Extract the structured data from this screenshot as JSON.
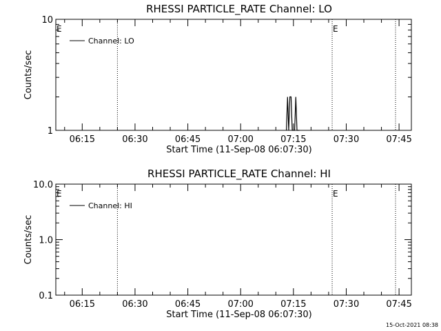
{
  "chart_data": [
    {
      "type": "line",
      "title": "RHESSI PARTICLE_RATE Channel: LO",
      "xlabel": "Start Time (11-Sep-08 06:07:30)",
      "ylabel": "Counts/sec",
      "y_scale": "log",
      "ylim": [
        1,
        10
      ],
      "y_tick_labels": [
        "10",
        "1"
      ],
      "x_tick_labels": [
        "06:15",
        "06:30",
        "06:45",
        "07:00",
        "07:15",
        "07:30",
        "07:45"
      ],
      "xlim": [
        "06:07:30",
        "07:48:30"
      ],
      "legend": {
        "placement": "top-left",
        "entries": [
          "Channel: LO"
        ]
      },
      "event_markers": [
        {
          "time": "06:07:30",
          "label": "E"
        },
        {
          "time": "06:25:00",
          "label": ""
        },
        {
          "time": "07:26:00",
          "label": "E"
        },
        {
          "time": "07:44:00",
          "label": ""
        }
      ],
      "series": [
        {
          "name": "Channel: LO",
          "x": [
            "07:13:00",
            "07:13:20",
            "07:13:40",
            "07:14:00",
            "07:14:20",
            "07:14:40",
            "07:15:00",
            "07:15:20",
            "07:15:40",
            "07:16:00",
            "07:16:20",
            "07:16:40"
          ],
          "y": [
            1,
            2,
            1,
            2,
            2,
            1,
            1,
            1,
            2,
            1,
            1,
            1
          ]
        }
      ]
    },
    {
      "type": "line",
      "title": "RHESSI PARTICLE_RATE Channel: HI",
      "xlabel": "Start Time (11-Sep-08 06:07:30)",
      "ylabel": "Counts/sec",
      "y_scale": "log",
      "ylim": [
        0.1,
        10
      ],
      "y_tick_labels": [
        "10.0",
        "1.0",
        "0.1"
      ],
      "x_tick_labels": [
        "06:15",
        "06:30",
        "06:45",
        "07:00",
        "07:15",
        "07:30",
        "07:45"
      ],
      "xlim": [
        "06:07:30",
        "07:48:30"
      ],
      "legend": {
        "placement": "top-left",
        "entries": [
          "Channel: HI"
        ]
      },
      "event_markers": [
        {
          "time": "06:07:30",
          "label": "E"
        },
        {
          "time": "06:25:00",
          "label": ""
        },
        {
          "time": "07:26:00",
          "label": "E"
        },
        {
          "time": "07:44:00",
          "label": ""
        }
      ],
      "series": [
        {
          "name": "Channel: HI",
          "x": [],
          "y": []
        }
      ]
    }
  ],
  "footer": {
    "timestamp": "15-Oct-2021 08:38"
  }
}
